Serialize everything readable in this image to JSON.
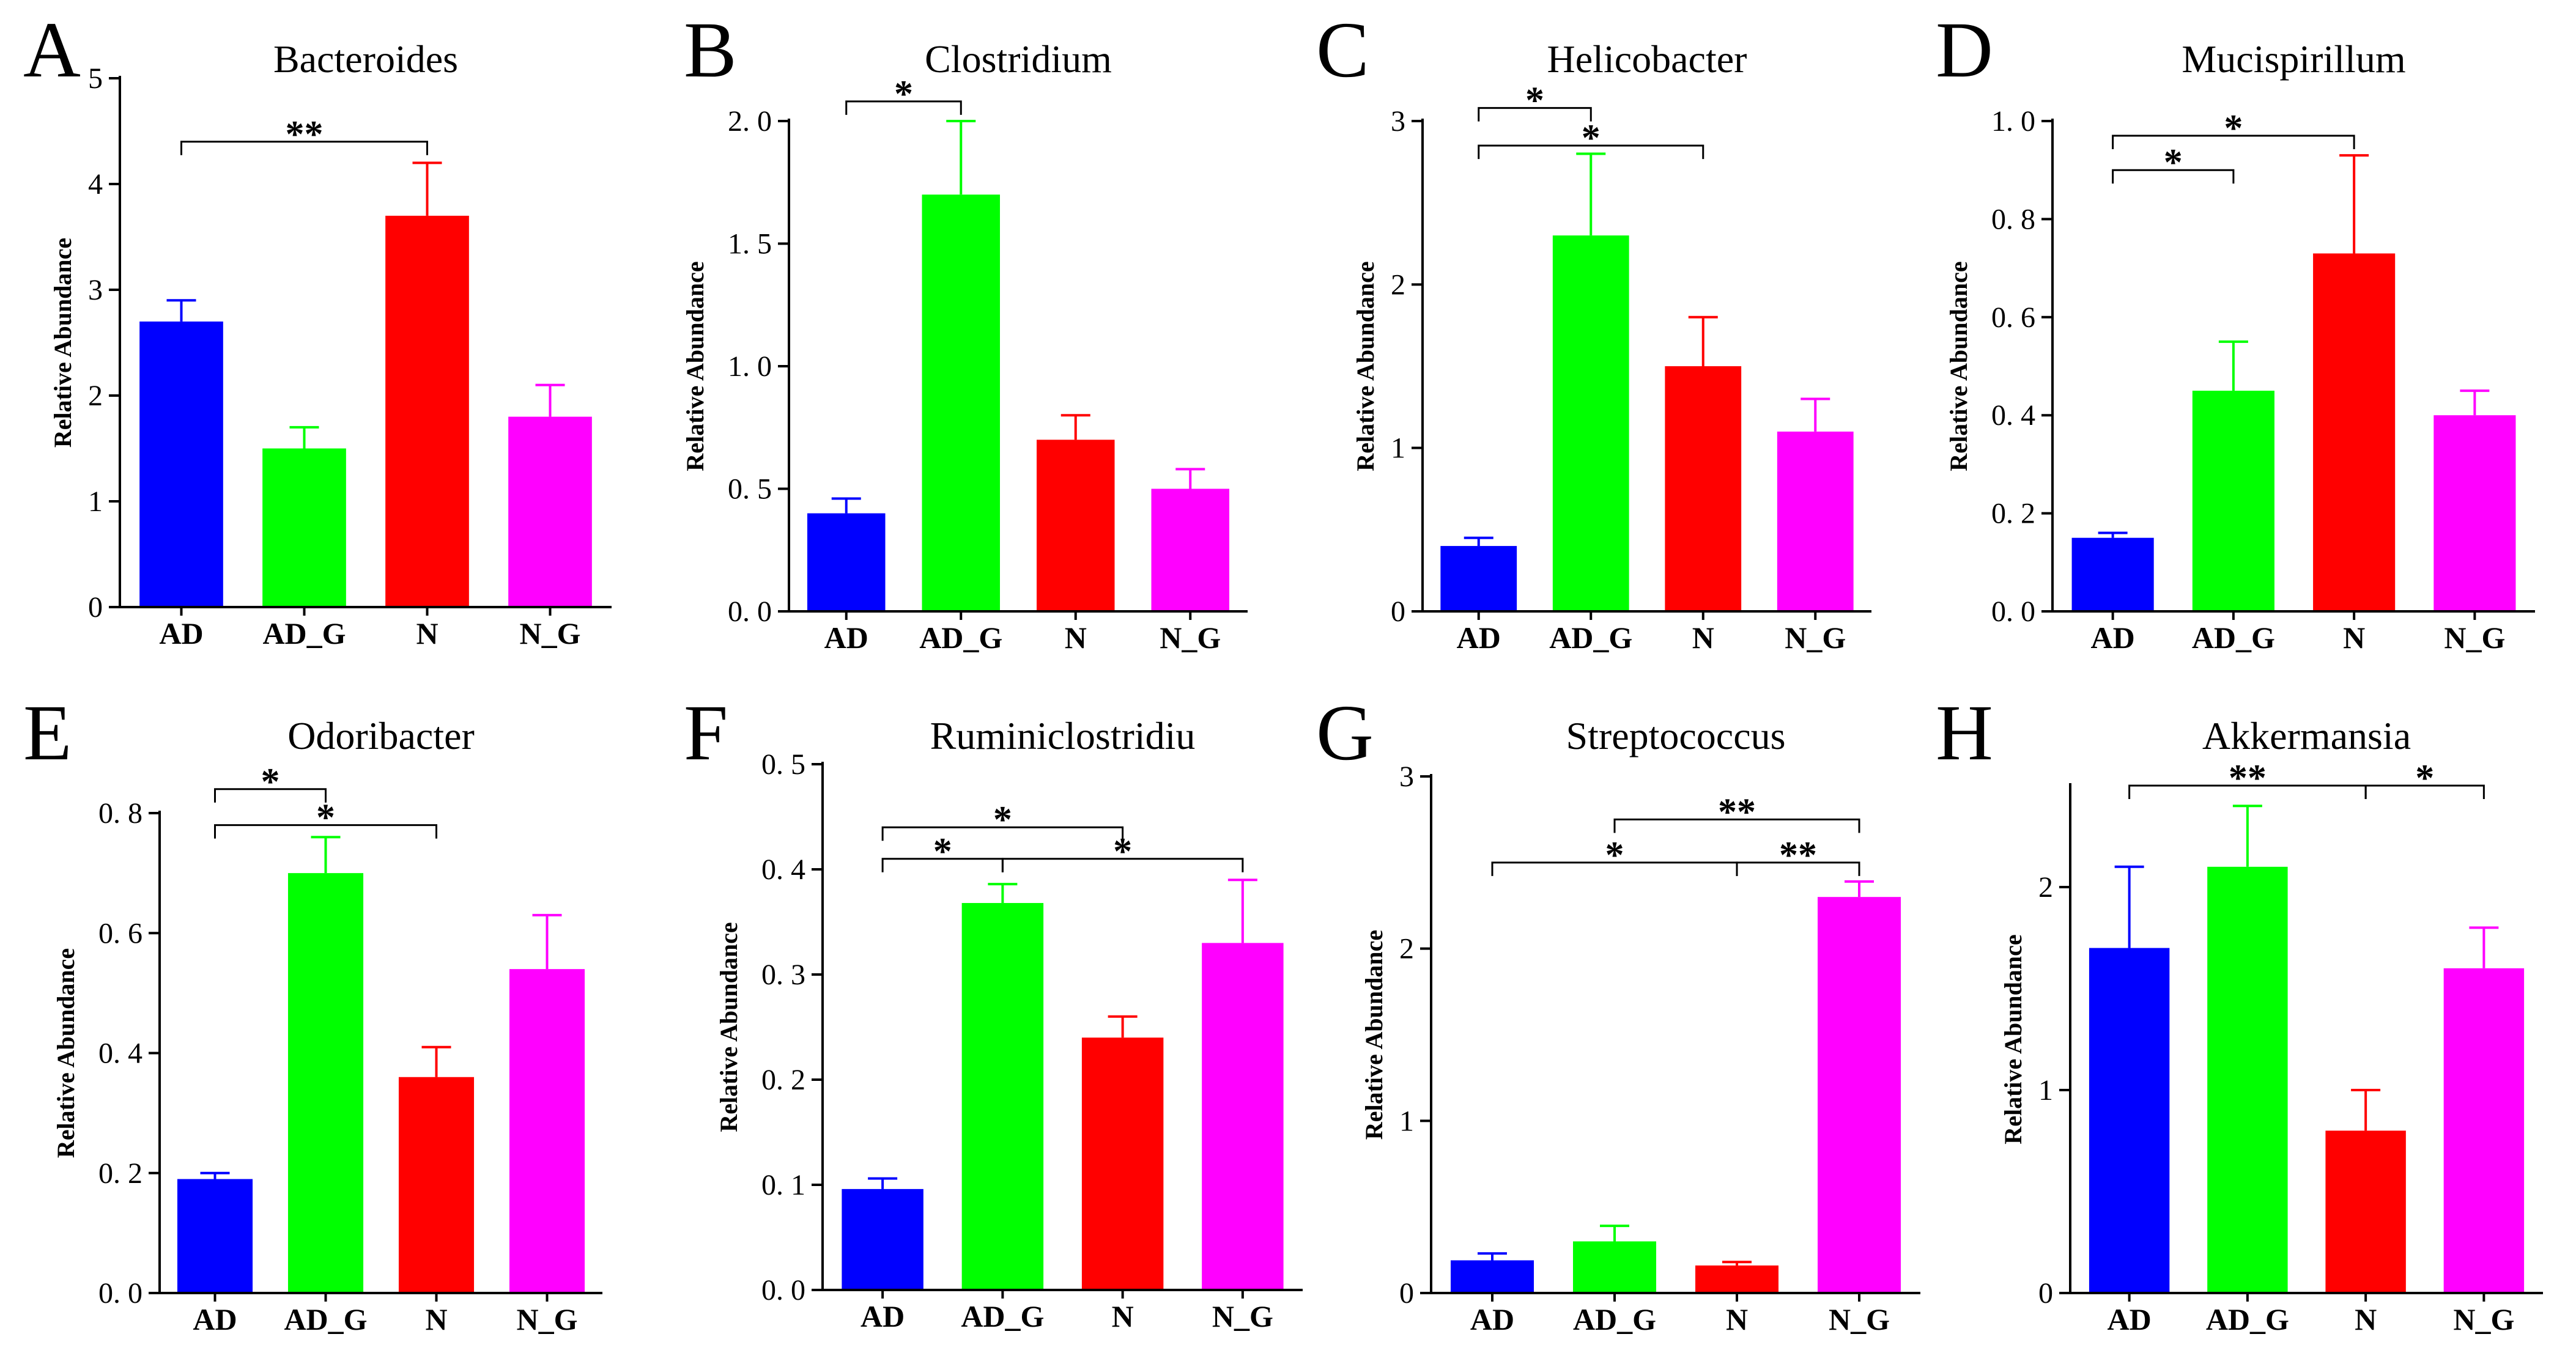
{
  "colors": {
    "AD": "#0000ff",
    "AD_G": "#00ff00",
    "N": "#ff0000",
    "N_G": "#ff00ff",
    "axis": "#000000"
  },
  "chart_data": [
    {
      "panel": "A",
      "type": "bar",
      "title": "Bacteroides",
      "ylabel": "Relative Abundance",
      "ylim": [
        0,
        5
      ],
      "yticks": [
        0,
        1,
        2,
        3,
        4,
        5
      ],
      "tick_decimals": 0,
      "tick_letterspace": false,
      "categories": [
        "AD",
        "AD_G",
        "N",
        "N_G"
      ],
      "values": [
        2.7,
        1.5,
        3.7,
        1.8
      ],
      "errors": [
        0.2,
        0.2,
        0.5,
        0.3
      ],
      "significance": [
        {
          "from": 0,
          "to": 2,
          "label": "**",
          "level": 4.4
        }
      ]
    },
    {
      "panel": "B",
      "type": "bar",
      "title": "Clostridium",
      "ylabel": "Relative Abundance",
      "ylim": [
        0,
        2.0
      ],
      "yticks": [
        0,
        0.5,
        1.0,
        1.5,
        2.0
      ],
      "tick_decimals": 1,
      "tick_letterspace": true,
      "categories": [
        "AD",
        "AD_G",
        "N",
        "N_G"
      ],
      "values": [
        0.4,
        1.7,
        0.7,
        0.5
      ],
      "errors": [
        0.06,
        0.3,
        0.1,
        0.08
      ],
      "significance": [
        {
          "from": 0,
          "to": 1,
          "label": "*",
          "level": 2.08
        }
      ]
    },
    {
      "panel": "C",
      "type": "bar",
      "title": "Helicobacter",
      "ylabel": "Relative Abundance",
      "ylim": [
        0,
        3
      ],
      "yticks": [
        0,
        1,
        2,
        3
      ],
      "tick_decimals": 0,
      "tick_letterspace": false,
      "categories": [
        "AD",
        "AD_G",
        "N",
        "N_G"
      ],
      "values": [
        0.4,
        2.3,
        1.5,
        1.1
      ],
      "errors": [
        0.05,
        0.5,
        0.3,
        0.2
      ],
      "significance": [
        {
          "from": 0,
          "to": 1,
          "label": "*",
          "level": 3.08
        },
        {
          "from": 0,
          "to": 2,
          "label": "*",
          "level": 2.85
        }
      ]
    },
    {
      "panel": "D",
      "type": "bar",
      "title": "Mucispirillum",
      "ylabel": "Relative Abundance",
      "ylim": [
        0,
        1.0
      ],
      "yticks": [
        0,
        0.2,
        0.4,
        0.6,
        0.8,
        1.0
      ],
      "tick_decimals": 1,
      "tick_letterspace": true,
      "categories": [
        "AD",
        "AD_G",
        "N",
        "N_G"
      ],
      "values": [
        0.15,
        0.45,
        0.73,
        0.4
      ],
      "errors": [
        0.01,
        0.1,
        0.2,
        0.05
      ],
      "significance": [
        {
          "from": 0,
          "to": 2,
          "label": "*",
          "level": 0.97
        },
        {
          "from": 0,
          "to": 1,
          "label": "*",
          "level": 0.9
        }
      ]
    },
    {
      "panel": "E",
      "type": "bar",
      "title": "Odoribacter",
      "ylabel": "Relative Abundance",
      "ylim": [
        0,
        0.8
      ],
      "yticks": [
        0,
        0.2,
        0.4,
        0.6,
        0.8
      ],
      "tick_decimals": 1,
      "tick_letterspace": true,
      "categories": [
        "AD",
        "AD_G",
        "N",
        "N_G"
      ],
      "values": [
        0.19,
        0.7,
        0.36,
        0.54
      ],
      "errors": [
        0.01,
        0.06,
        0.05,
        0.09
      ],
      "significance": [
        {
          "from": 0,
          "to": 1,
          "label": "*",
          "level": 0.84
        },
        {
          "from": 0,
          "to": 2,
          "label": "*",
          "level": 0.78
        }
      ]
    },
    {
      "panel": "F",
      "type": "bar",
      "title": "Ruminiclostridiu",
      "ylabel": "Relative Abundance",
      "ylim": [
        0,
        0.5
      ],
      "yticks": [
        0,
        0.1,
        0.2,
        0.3,
        0.4,
        0.5
      ],
      "tick_decimals": 1,
      "tick_letterspace": true,
      "categories": [
        "AD",
        "AD_G",
        "N",
        "N_G"
      ],
      "values": [
        0.096,
        0.368,
        0.24,
        0.33
      ],
      "errors": [
        0.01,
        0.018,
        0.02,
        0.06
      ],
      "significance": [
        {
          "from": 0,
          "to": 2,
          "label": "*",
          "level": 0.44
        },
        {
          "from": 0,
          "to": 1,
          "label": "*",
          "level": 0.41
        },
        {
          "from": 1,
          "to": 3,
          "label": "*",
          "level": 0.41
        }
      ]
    },
    {
      "panel": "G",
      "type": "bar",
      "title": "Streptococcus",
      "ylabel": "Relative Abundance",
      "ylim": [
        0,
        3
      ],
      "yticks": [
        0,
        1,
        2,
        3
      ],
      "tick_decimals": 0,
      "tick_letterspace": false,
      "categories": [
        "AD",
        "AD_G",
        "N",
        "N_G"
      ],
      "values": [
        0.19,
        0.3,
        0.16,
        2.3
      ],
      "errors": [
        0.04,
        0.09,
        0.02,
        0.09
      ],
      "significance": [
        {
          "from": 1,
          "to": 3,
          "label": "**",
          "level": 2.75
        },
        {
          "from": 0,
          "to": 2,
          "label": "*",
          "level": 2.5
        },
        {
          "from": 2,
          "to": 3,
          "label": "**",
          "level": 2.5
        }
      ]
    },
    {
      "panel": "H",
      "type": "bar",
      "title": "Akkermansia",
      "ylabel": "Relative Abundance",
      "ylim": [
        0,
        2.5
      ],
      "yticks": [
        0,
        1,
        2
      ],
      "tick_decimals": 0,
      "tick_letterspace": false,
      "categories": [
        "AD",
        "AD_G",
        "N",
        "N_G"
      ],
      "values": [
        1.7,
        2.1,
        0.8,
        1.6
      ],
      "errors": [
        0.4,
        0.3,
        0.2,
        0.2
      ],
      "significance": [
        {
          "from": 0,
          "to": 2,
          "label": "**",
          "level": 2.5
        },
        {
          "from": 2,
          "to": 3,
          "label": "*",
          "level": 2.5
        }
      ]
    }
  ]
}
